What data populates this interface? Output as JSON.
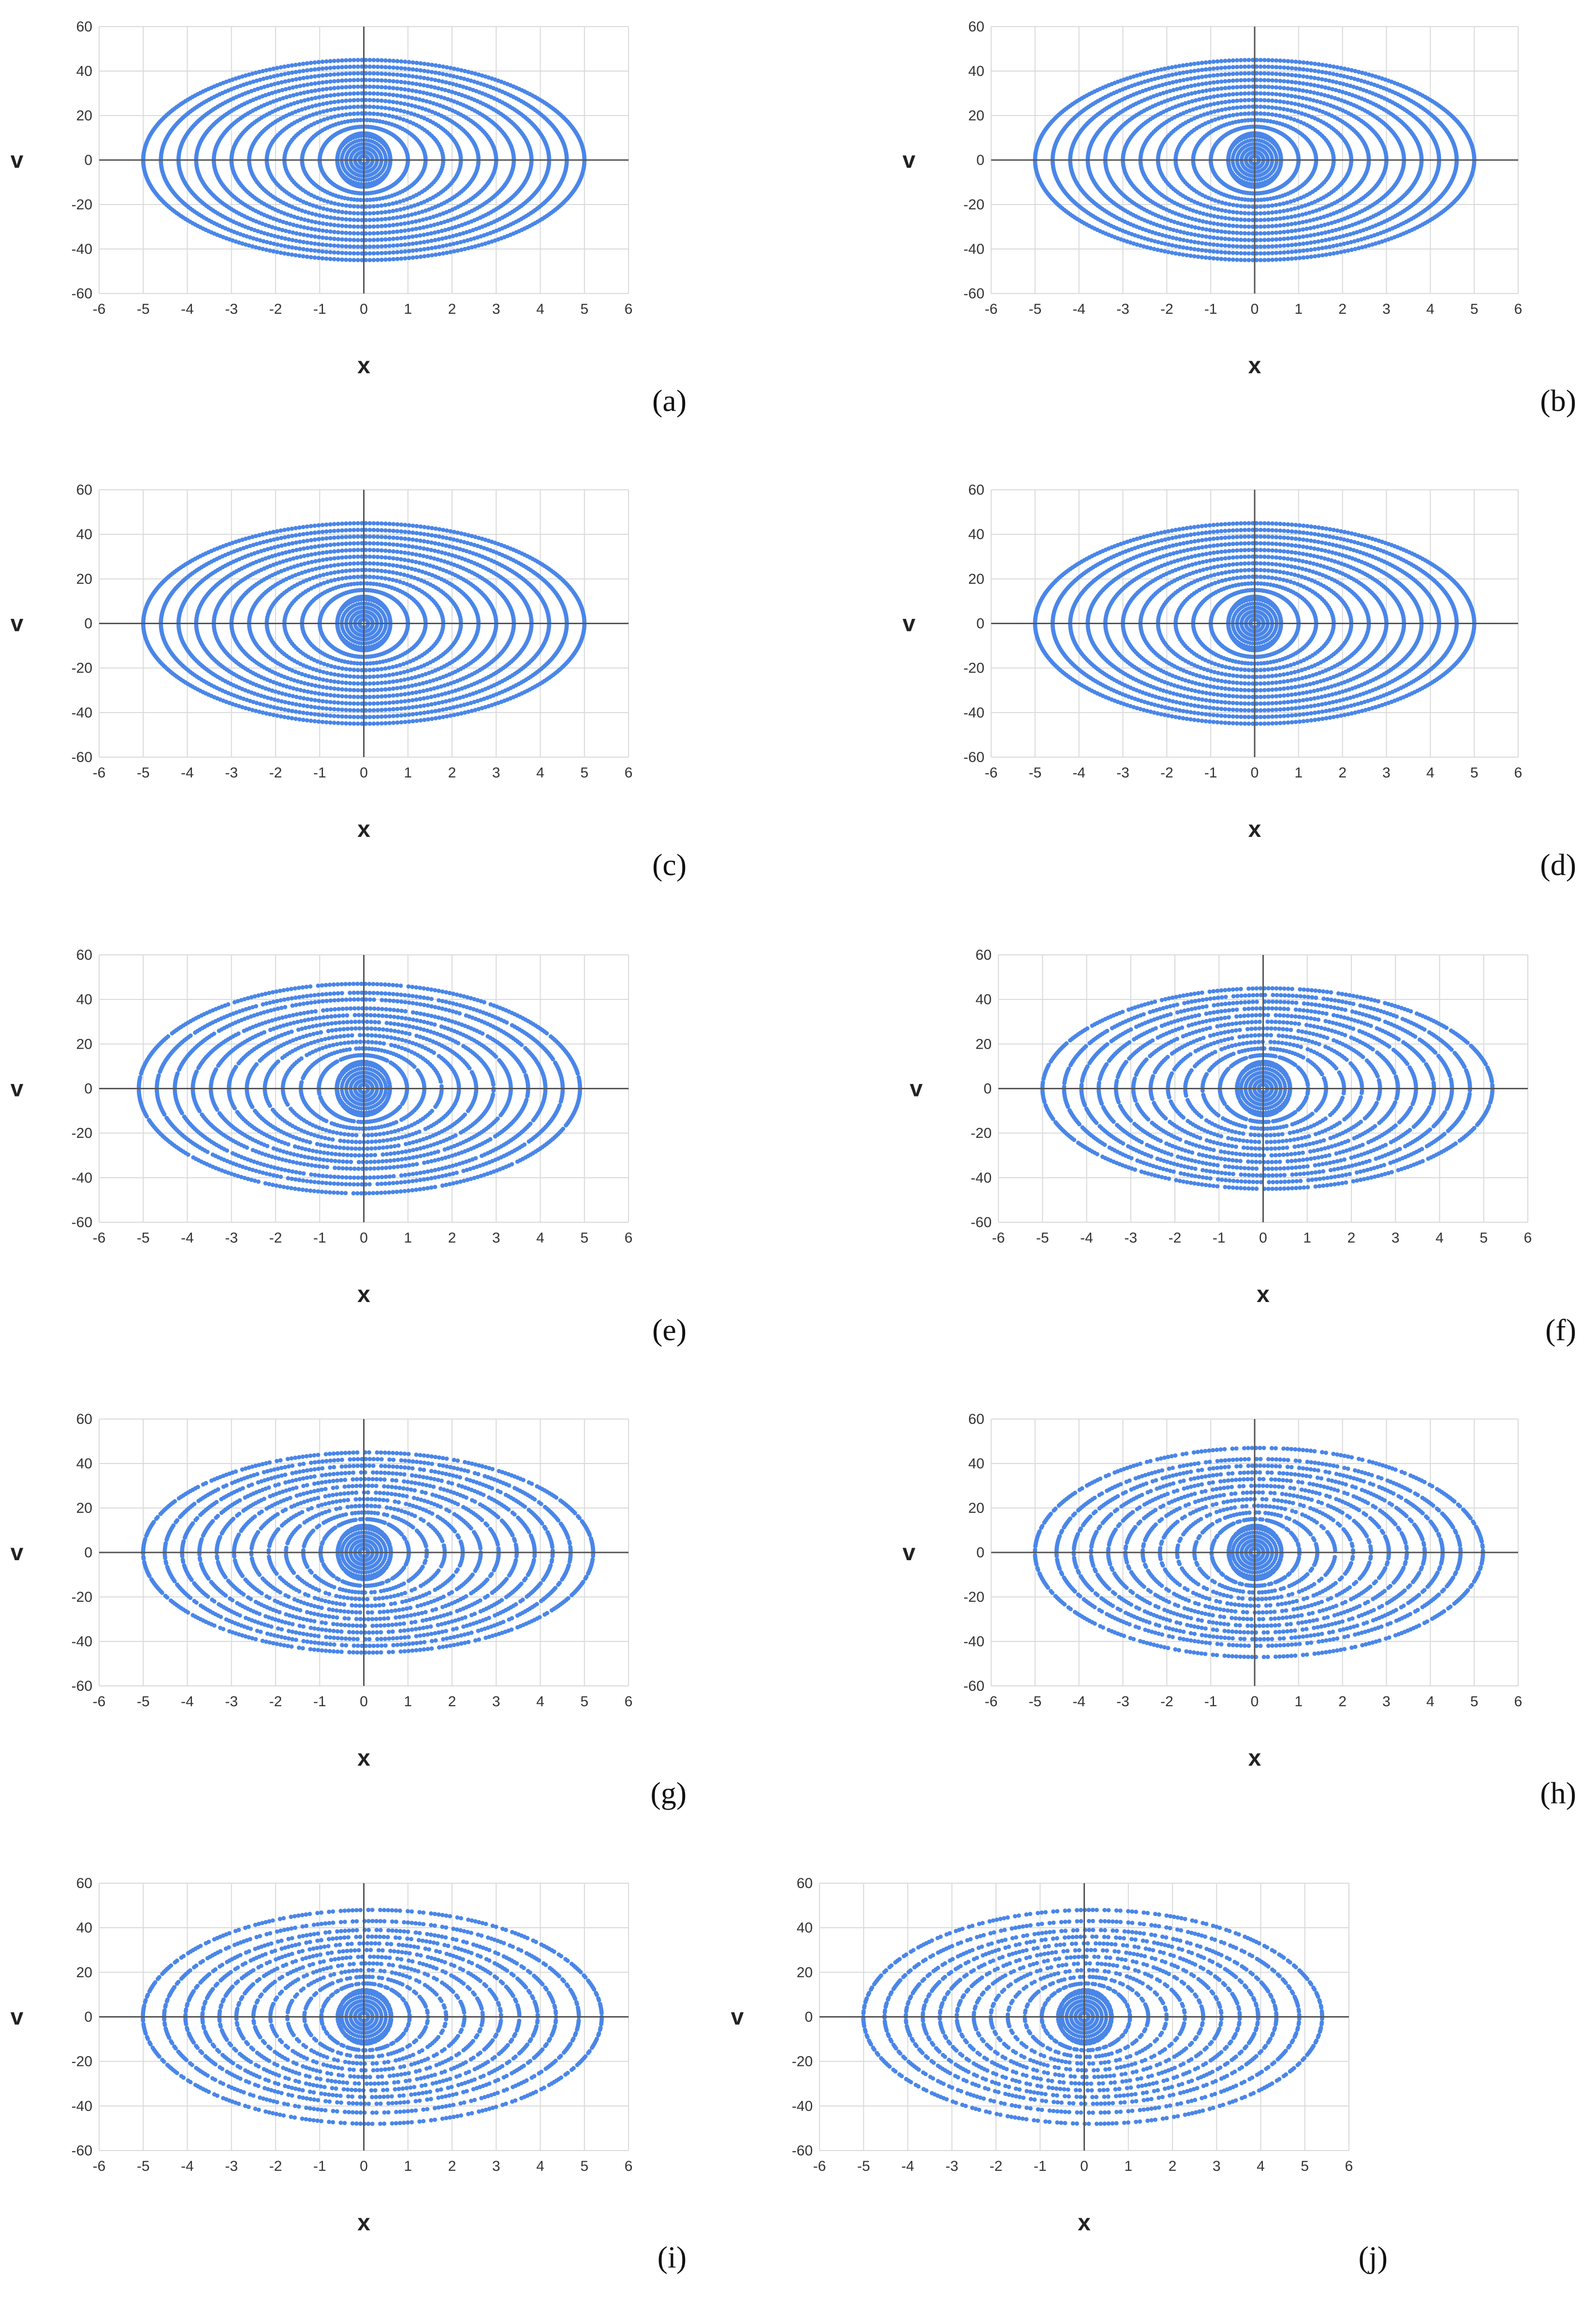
{
  "chart_data": [
    {
      "type": "scatter",
      "panel": "(a)",
      "xlabel": "x",
      "ylabel": "v",
      "xlim": [
        -6,
        6
      ],
      "ylim": [
        -60,
        60
      ],
      "xticks": [
        -6,
        -5,
        -4,
        -3,
        -2,
        -1,
        0,
        1,
        2,
        3,
        4,
        5,
        6
      ],
      "yticks": [
        60,
        40,
        20,
        0,
        -20,
        -40,
        -60
      ],
      "series": [
        {
          "values": {
            "x_range": [
              -5.0,
              5.0
            ],
            "v_range": [
              -45,
              45
            ],
            "orbits": [
              [
                5.0,
                45
              ],
              [
                4.6,
                42
              ],
              [
                4.2,
                39
              ],
              [
                3.8,
                36
              ],
              [
                3.4,
                33
              ],
              [
                3.0,
                30
              ],
              [
                2.6,
                27
              ],
              [
                2.2,
                24
              ],
              [
                1.8,
                21
              ],
              [
                1.4,
                18
              ],
              [
                1.0,
                15
              ],
              [
                0.6,
                12
              ]
            ]
          },
          "color": "#4A86E8"
        }
      ],
      "grid": true,
      "legend": "none"
    },
    {
      "type": "scatter",
      "panel": "(b)",
      "xlabel": "x",
      "ylabel": "v",
      "xlim": [
        -6,
        6
      ],
      "ylim": [
        -60,
        60
      ],
      "xticks": [
        -6,
        -5,
        -4,
        -3,
        -2,
        -1,
        0,
        1,
        2,
        3,
        4,
        5,
        6
      ],
      "yticks": [
        60,
        40,
        20,
        0,
        -20,
        -40,
        -60
      ],
      "series": [
        {
          "values": {
            "x_range": [
              -5.0,
              5.0
            ],
            "v_range": [
              -45,
              45
            ],
            "orbits": [
              [
                5.0,
                45
              ],
              [
                4.6,
                42
              ],
              [
                4.2,
                39
              ],
              [
                3.8,
                36
              ],
              [
                3.4,
                33
              ],
              [
                3.0,
                30
              ],
              [
                2.6,
                27
              ],
              [
                2.2,
                24
              ],
              [
                1.8,
                21
              ],
              [
                1.4,
                18
              ],
              [
                1.0,
                15
              ],
              [
                0.6,
                12
              ]
            ]
          },
          "color": "#4A86E8"
        }
      ],
      "grid": true,
      "legend": "none"
    },
    {
      "type": "scatter",
      "panel": "(c)",
      "xlabel": "x",
      "ylabel": "v",
      "xlim": [
        -6,
        6
      ],
      "ylim": [
        -60,
        60
      ],
      "xticks": [
        -6,
        -5,
        -4,
        -3,
        -2,
        -1,
        0,
        1,
        2,
        3,
        4,
        5,
        6
      ],
      "yticks": [
        60,
        40,
        20,
        0,
        -20,
        -40,
        -60
      ],
      "series": [
        {
          "values": {
            "x_range": [
              -5.0,
              5.0
            ],
            "v_range": [
              -45,
              45
            ],
            "orbits": [
              [
                5.0,
                45
              ],
              [
                4.6,
                42
              ],
              [
                4.2,
                39
              ],
              [
                3.8,
                36
              ],
              [
                3.4,
                33
              ],
              [
                3.0,
                30
              ],
              [
                2.6,
                27
              ],
              [
                2.2,
                24
              ],
              [
                1.8,
                21
              ],
              [
                1.4,
                18
              ],
              [
                1.0,
                15
              ],
              [
                0.6,
                12
              ]
            ]
          },
          "color": "#4A86E8"
        }
      ],
      "grid": true,
      "legend": "none"
    },
    {
      "type": "scatter",
      "panel": "(d)",
      "xlabel": "x",
      "ylabel": "v",
      "xlim": [
        -6,
        6
      ],
      "ylim": [
        -60,
        60
      ],
      "xticks": [
        -6,
        -5,
        -4,
        -3,
        -2,
        -1,
        0,
        1,
        2,
        3,
        4,
        5,
        6
      ],
      "yticks": [
        60,
        40,
        20,
        0,
        -20,
        -40,
        -60
      ],
      "series": [
        {
          "values": {
            "x_range": [
              -5.0,
              5.0
            ],
            "v_range": [
              -45,
              45
            ],
            "orbits": [
              [
                5.0,
                45
              ],
              [
                4.6,
                42
              ],
              [
                4.2,
                39
              ],
              [
                3.8,
                36
              ],
              [
                3.4,
                33
              ],
              [
                3.0,
                30
              ],
              [
                2.6,
                27
              ],
              [
                2.2,
                24
              ],
              [
                1.8,
                21
              ],
              [
                1.4,
                18
              ],
              [
                1.0,
                15
              ],
              [
                0.6,
                12
              ]
            ]
          },
          "color": "#4A86E8"
        }
      ],
      "grid": true,
      "legend": "none"
    },
    {
      "type": "scatter",
      "panel": "(e)",
      "xlabel": "x",
      "ylabel": "v",
      "xlim": [
        -6,
        6
      ],
      "ylim": [
        -60,
        60
      ],
      "xticks": [
        -6,
        -5,
        -4,
        -3,
        -2,
        -1,
        0,
        1,
        2,
        3,
        4,
        5,
        6
      ],
      "yticks": [
        60,
        40,
        20,
        0,
        -20,
        -40,
        -60
      ],
      "series": [
        {
          "values": {
            "x_range": [
              -5.2,
              5.0
            ],
            "v_range": [
              -47,
              47
            ],
            "orbits": [
              [
                5.0,
                47
              ],
              [
                4.6,
                43
              ],
              [
                4.2,
                40
              ],
              [
                3.8,
                36
              ],
              [
                3.4,
                33
              ],
              [
                3.0,
                30
              ],
              [
                2.6,
                27
              ],
              [
                2.2,
                24
              ],
              [
                1.8,
                21
              ],
              [
                1.4,
                18
              ],
              [
                1.0,
                15
              ],
              [
                0.6,
                12
              ]
            ]
          },
          "color": "#4A86E8"
        }
      ],
      "grid": true,
      "legend": "none"
    },
    {
      "type": "scatter",
      "panel": "(f)",
      "xlabel": "x",
      "ylabel": "v",
      "xlim": [
        -6,
        6
      ],
      "ylim": [
        -60,
        60
      ],
      "xticks": [
        -6,
        -5,
        -4,
        -3,
        -2,
        -1,
        0,
        1,
        2,
        3,
        4,
        5,
        6
      ],
      "yticks": [
        60,
        40,
        20,
        0,
        -20,
        -40,
        -60
      ],
      "series": [
        {
          "values": {
            "x_range": [
              -5.0,
              5.2
            ],
            "v_range": [
              -45,
              45
            ],
            "orbits": [
              [
                5.1,
                45
              ],
              [
                4.6,
                42
              ],
              [
                4.2,
                39
              ],
              [
                3.8,
                36
              ],
              [
                3.4,
                33
              ],
              [
                3.0,
                30
              ],
              [
                2.6,
                27
              ],
              [
                2.2,
                24
              ],
              [
                1.8,
                21
              ],
              [
                1.4,
                18
              ],
              [
                1.0,
                15
              ],
              [
                0.6,
                12
              ]
            ]
          },
          "color": "#4A86E8"
        }
      ],
      "grid": true,
      "legend": "none"
    },
    {
      "type": "scatter",
      "panel": "(g)",
      "xlabel": "x",
      "ylabel": "v",
      "xlim": [
        -6,
        6
      ],
      "ylim": [
        -60,
        60
      ],
      "xticks": [
        -6,
        -5,
        -4,
        -3,
        -2,
        -1,
        0,
        1,
        2,
        3,
        4,
        5,
        6
      ],
      "yticks": [
        60,
        40,
        20,
        0,
        -20,
        -40,
        -60
      ],
      "series": [
        {
          "values": {
            "x_range": [
              -5.0,
              5.2
            ],
            "v_range": [
              -45,
              45
            ],
            "orbits": [
              [
                5.1,
                45
              ],
              [
                4.6,
                42
              ],
              [
                4.2,
                39
              ],
              [
                3.8,
                36
              ],
              [
                3.4,
                33
              ],
              [
                3.0,
                30
              ],
              [
                2.6,
                27
              ],
              [
                2.2,
                24
              ],
              [
                1.8,
                21
              ],
              [
                1.4,
                18
              ],
              [
                1.0,
                15
              ],
              [
                0.6,
                12
              ]
            ]
          },
          "color": "#4A86E8"
        }
      ],
      "grid": true,
      "legend": "none"
    },
    {
      "type": "scatter",
      "panel": "(h)",
      "xlabel": "x",
      "ylabel": "v",
      "xlim": [
        -6,
        6
      ],
      "ylim": [
        -60,
        60
      ],
      "xticks": [
        -6,
        -5,
        -4,
        -3,
        -2,
        -1,
        0,
        1,
        2,
        3,
        4,
        5,
        6
      ],
      "yticks": [
        60,
        40,
        20,
        0,
        -20,
        -40,
        -60
      ],
      "series": [
        {
          "values": {
            "x_range": [
              -5.0,
              5.2
            ],
            "v_range": [
              -47,
              47
            ],
            "orbits": [
              [
                5.1,
                47
              ],
              [
                4.6,
                42
              ],
              [
                4.2,
                39
              ],
              [
                3.8,
                36
              ],
              [
                3.4,
                33
              ],
              [
                3.0,
                30
              ],
              [
                2.6,
                27
              ],
              [
                2.2,
                24
              ],
              [
                1.8,
                21
              ],
              [
                1.4,
                18
              ],
              [
                1.0,
                15
              ],
              [
                0.6,
                12
              ]
            ]
          },
          "color": "#4A86E8"
        }
      ],
      "grid": true,
      "legend": "none"
    },
    {
      "type": "scatter",
      "panel": "(i)",
      "xlabel": "x",
      "ylabel": "v",
      "xlim": [
        -6,
        6
      ],
      "ylim": [
        -60,
        60
      ],
      "xticks": [
        -6,
        -5,
        -4,
        -3,
        -2,
        -1,
        0,
        1,
        2,
        3,
        4,
        5,
        6
      ],
      "yticks": [
        60,
        40,
        20,
        0,
        -20,
        -40,
        -60
      ],
      "series": [
        {
          "values": {
            "x_range": [
              -5.0,
              5.4
            ],
            "v_range": [
              -48,
              48
            ],
            "orbits": [
              [
                5.2,
                48
              ],
              [
                4.7,
                43
              ],
              [
                4.2,
                39
              ],
              [
                3.8,
                36
              ],
              [
                3.4,
                33
              ],
              [
                3.0,
                30
              ],
              [
                2.6,
                27
              ],
              [
                2.2,
                24
              ],
              [
                1.8,
                21
              ],
              [
                1.4,
                18
              ],
              [
                1.0,
                15
              ],
              [
                0.6,
                12
              ]
            ]
          },
          "color": "#4A86E8"
        }
      ],
      "grid": true,
      "legend": "none"
    },
    {
      "type": "scatter",
      "panel": "(j)",
      "xlabel": "x",
      "ylabel": "v",
      "xlim": [
        -6,
        6
      ],
      "ylim": [
        -60,
        60
      ],
      "xticks": [
        -6,
        -5,
        -4,
        -3,
        -2,
        -1,
        0,
        1,
        2,
        3,
        4,
        5,
        6
      ],
      "yticks": [
        60,
        40,
        20,
        0,
        -20,
        -40,
        -60
      ],
      "series": [
        {
          "values": {
            "x_range": [
              -5.0,
              5.4
            ],
            "v_range": [
              -48,
              48
            ],
            "orbits": [
              [
                5.2,
                48
              ],
              [
                4.7,
                43
              ],
              [
                4.2,
                39
              ],
              [
                3.8,
                36
              ],
              [
                3.4,
                33
              ],
              [
                3.0,
                30
              ],
              [
                2.6,
                27
              ],
              [
                2.2,
                24
              ],
              [
                1.8,
                21
              ],
              [
                1.4,
                18
              ],
              [
                1.0,
                15
              ],
              [
                0.6,
                12
              ]
            ]
          },
          "color": "#4A86E8"
        }
      ],
      "grid": true,
      "legend": "none"
    }
  ]
}
